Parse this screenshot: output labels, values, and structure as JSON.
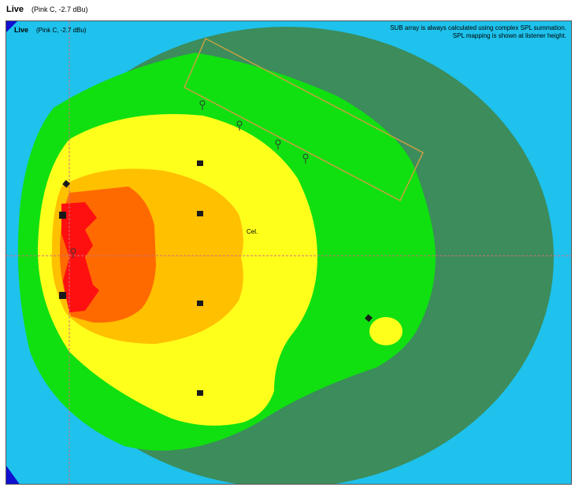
{
  "window": {
    "title": "Live",
    "subtitle": "(Pink C, -2.7 dBu)"
  },
  "plot": {
    "title": "Live",
    "subtitle": "(Pink C, -2.7 dBu)",
    "notes": [
      "SUB array is always calculated using complex SPL summation.",
      "SPL mapping is shown at listener height."
    ],
    "center_label": "Cel.",
    "colors": {
      "background": "#1ec2ec",
      "outer_zone": "#3c8c5c",
      "green_zone": "#10e010",
      "yellow_zone": "#ffff1c",
      "light_orange_zone": "#ffc000",
      "orange_zone": "#ff6a00",
      "red_zone": "#ff1010",
      "array_outline": "#c8a040",
      "crosshair": "#d07080",
      "corner": "#1010d0"
    },
    "icons": [
      "speaker-marker-icon",
      "microphone-icon",
      "sub-array-outline-icon",
      "crosshair-icon"
    ]
  }
}
